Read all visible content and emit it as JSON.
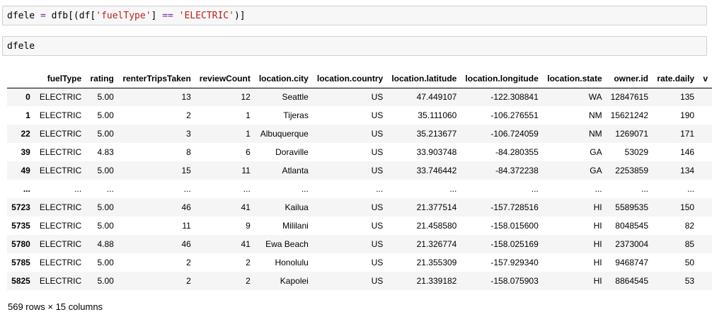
{
  "cell1": {
    "code_tokens": {
      "t1": "dfele",
      "t2": " = ",
      "t3": "dfb[(df[",
      "t4": "'fuelType'",
      "t5": "] ",
      "t6": "==",
      "t7": " ",
      "t8": "'ELECTRIC'",
      "t9": ")]"
    }
  },
  "cell2": {
    "code": "dfele"
  },
  "table": {
    "columns": [
      "",
      "fuelType",
      "rating",
      "renterTripsTaken",
      "reviewCount",
      "location.city",
      "location.country",
      "location.latitude",
      "location.longitude",
      "location.state",
      "owner.id",
      "rate.daily",
      "v"
    ],
    "rows": [
      [
        "0",
        "ELECTRIC",
        "5.00",
        "13",
        "12",
        "Seattle",
        "US",
        "47.449107",
        "-122.308841",
        "WA",
        "12847615",
        "135",
        ""
      ],
      [
        "1",
        "ELECTRIC",
        "5.00",
        "2",
        "1",
        "Tijeras",
        "US",
        "35.111060",
        "-106.276551",
        "NM",
        "15621242",
        "190",
        ""
      ],
      [
        "22",
        "ELECTRIC",
        "5.00",
        "3",
        "1",
        "Albuquerque",
        "US",
        "35.213677",
        "-106.724059",
        "NM",
        "1269071",
        "171",
        ""
      ],
      [
        "39",
        "ELECTRIC",
        "4.83",
        "8",
        "6",
        "Doraville",
        "US",
        "33.903748",
        "-84.280355",
        "GA",
        "53029",
        "146",
        ""
      ],
      [
        "49",
        "ELECTRIC",
        "5.00",
        "15",
        "11",
        "Atlanta",
        "US",
        "33.746442",
        "-84.372238",
        "GA",
        "2253859",
        "134",
        ""
      ],
      [
        "...",
        "...",
        "...",
        "...",
        "...",
        "...",
        "...",
        "...",
        "...",
        "...",
        "...",
        "...",
        ""
      ],
      [
        "5723",
        "ELECTRIC",
        "5.00",
        "46",
        "41",
        "Kailua",
        "US",
        "21.377514",
        "-157.728516",
        "HI",
        "5589535",
        "150",
        ""
      ],
      [
        "5735",
        "ELECTRIC",
        "5.00",
        "11",
        "9",
        "Mililani",
        "US",
        "21.458580",
        "-158.015600",
        "HI",
        "8048545",
        "82",
        ""
      ],
      [
        "5780",
        "ELECTRIC",
        "4.88",
        "46",
        "41",
        "Ewa Beach",
        "US",
        "21.326774",
        "-158.025169",
        "HI",
        "2373004",
        "85",
        ""
      ],
      [
        "5785",
        "ELECTRIC",
        "5.00",
        "2",
        "2",
        "Honolulu",
        "US",
        "21.355309",
        "-157.929340",
        "HI",
        "9468747",
        "50",
        ""
      ],
      [
        "5825",
        "ELECTRIC",
        "5.00",
        "2",
        "2",
        "Kapolei",
        "US",
        "21.339182",
        "-158.075903",
        "HI",
        "8864545",
        "53",
        ""
      ]
    ]
  },
  "footer": {
    "shape_text": "569 rows × 15 columns"
  }
}
